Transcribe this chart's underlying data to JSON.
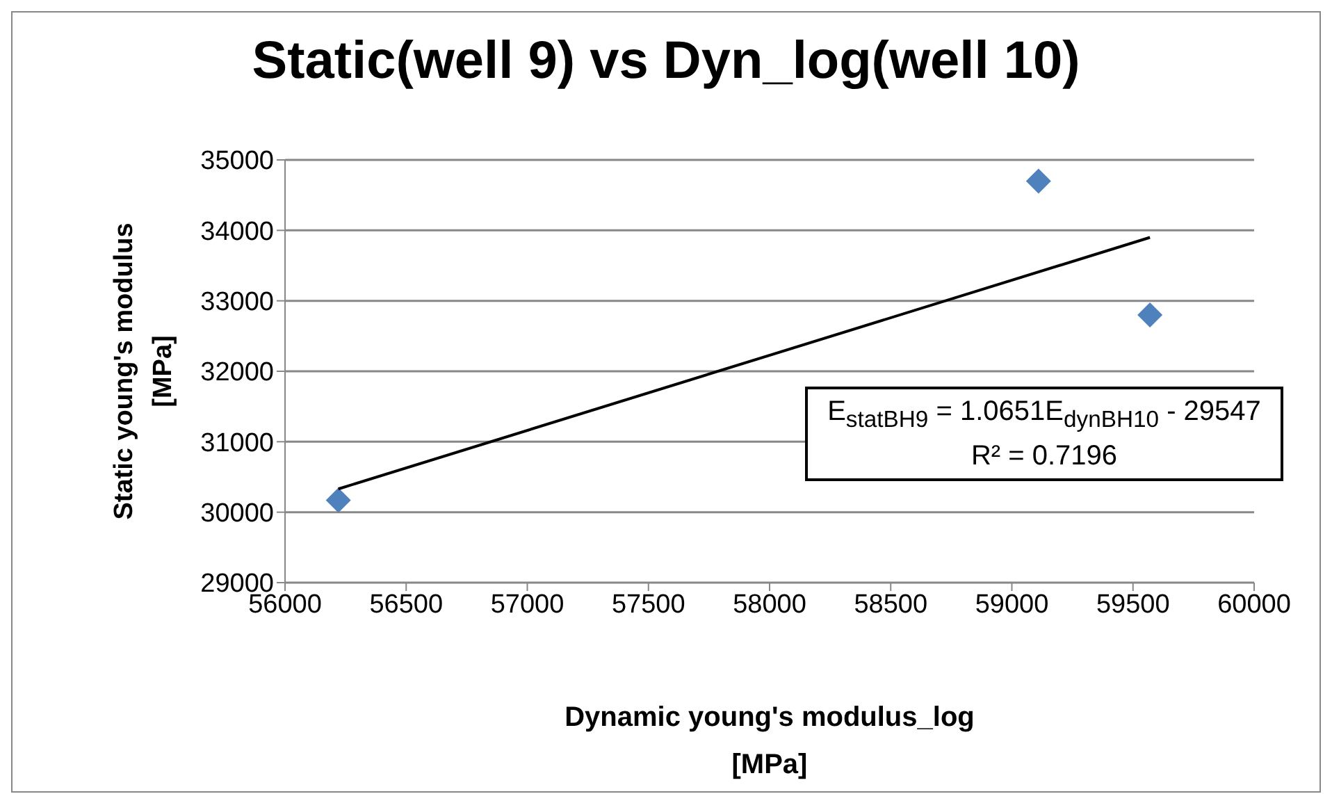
{
  "chart_data": {
    "type": "scatter",
    "title": "Static(well 9) vs Dyn_log(well 10)",
    "xlabel": "Dynamic young's modulus_log\n[MPa]",
    "ylabel": "Static young's modulus\n[MPa]",
    "series": [
      {
        "type": "scatter",
        "color": "#4f81bd",
        "x": [
          56220,
          59110,
          59570
        ],
        "values": [
          30170,
          34700,
          32800
        ]
      },
      {
        "type": "line",
        "color": "#000000",
        "marker": "none",
        "x": [
          56220,
          59570
        ],
        "values": [
          30330,
          33900
        ]
      }
    ],
    "xlim": [
      56000,
      60000
    ],
    "xticks": [
      56000,
      56500,
      57000,
      57500,
      58000,
      58500,
      59000,
      59500,
      60000
    ],
    "ylim": [
      29000,
      35000
    ],
    "yticks": [
      29000,
      30000,
      31000,
      32000,
      33000,
      34000,
      35000
    ],
    "grid": "y",
    "marker": "diamond",
    "legend": false,
    "annotations": [
      "E$_{statBH9}$ = 1.0651E$_{dynBH10}$ - 29547",
      "R² = 0.7196"
    ]
  }
}
